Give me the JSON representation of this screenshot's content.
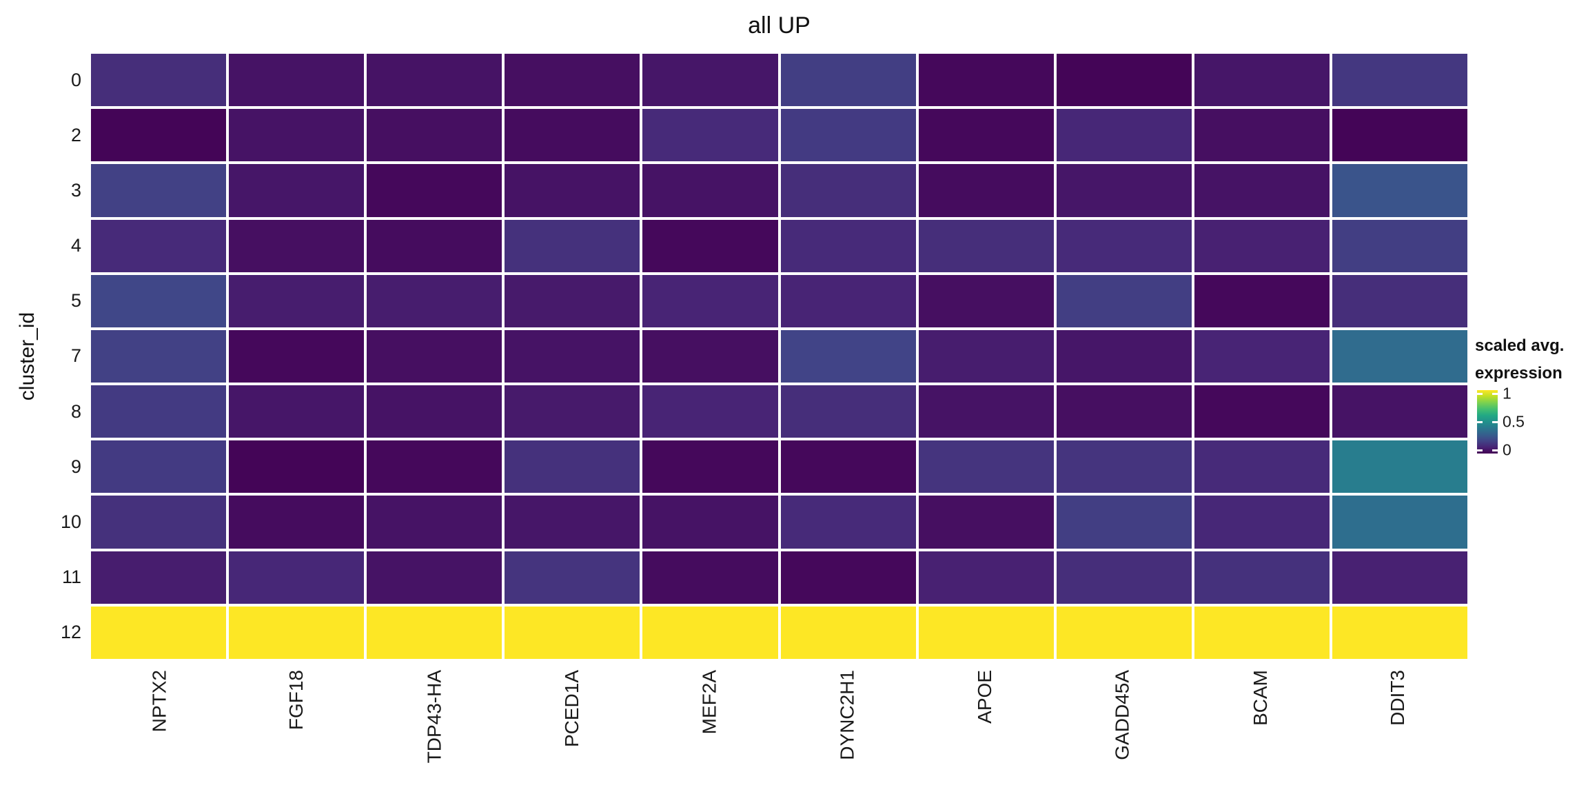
{
  "figure": {
    "title": "all UP",
    "y_axis_title": "cluster_id",
    "background_color": "#ffffff",
    "cell_border_color": "#ffffff",
    "legend": {
      "title_line1": "scaled avg.",
      "title_line2": "expression",
      "tick_labels": [
        "1",
        "0.5",
        "0"
      ],
      "tick_values": [
        1,
        0.5,
        0
      ],
      "position": "right"
    }
  },
  "chart_data": {
    "type": "heatmap",
    "title": "all UP",
    "xlabel": "",
    "ylabel": "cluster_id",
    "legend_title": "scaled avg. expression",
    "legend_ticks": [
      0,
      0.5,
      1
    ],
    "x_categories": [
      "NPTX2",
      "FGF18",
      "TDP43-HA",
      "PCED1A",
      "MEF2A",
      "DYNC2H1",
      "APOE",
      "GADD45A",
      "BCAM",
      "DDIT3"
    ],
    "y_categories": [
      "0",
      "2",
      "3",
      "4",
      "5",
      "7",
      "8",
      "9",
      "10",
      "11",
      "12"
    ],
    "values": [
      [
        0.13,
        0.05,
        0.05,
        0.04,
        0.06,
        0.18,
        0.02,
        0.01,
        0.06,
        0.16
      ],
      [
        0.01,
        0.05,
        0.04,
        0.03,
        0.12,
        0.17,
        0.02,
        0.11,
        0.04,
        0.01
      ],
      [
        0.19,
        0.06,
        0.02,
        0.05,
        0.05,
        0.13,
        0.03,
        0.06,
        0.05,
        0.26
      ],
      [
        0.12,
        0.04,
        0.03,
        0.14,
        0.02,
        0.12,
        0.13,
        0.12,
        0.09,
        0.18
      ],
      [
        0.21,
        0.08,
        0.08,
        0.07,
        0.1,
        0.1,
        0.04,
        0.18,
        0.02,
        0.13
      ],
      [
        0.19,
        0.02,
        0.04,
        0.05,
        0.04,
        0.2,
        0.08,
        0.06,
        0.1,
        0.35
      ],
      [
        0.17,
        0.06,
        0.05,
        0.07,
        0.1,
        0.13,
        0.05,
        0.04,
        0.02,
        0.05
      ],
      [
        0.17,
        0.01,
        0.02,
        0.14,
        0.02,
        0.02,
        0.15,
        0.15,
        0.12,
        0.42
      ],
      [
        0.14,
        0.03,
        0.05,
        0.06,
        0.05,
        0.12,
        0.04,
        0.18,
        0.11,
        0.36
      ],
      [
        0.08,
        0.11,
        0.05,
        0.15,
        0.03,
        0.02,
        0.09,
        0.13,
        0.14,
        0.09
      ],
      [
        1.0,
        1.0,
        1.0,
        1.0,
        1.0,
        1.0,
        1.0,
        1.0,
        1.0,
        1.0
      ]
    ],
    "value_range": [
      0,
      1
    ],
    "grid": false,
    "colormap": {
      "name": "viridis",
      "anchors": [
        [
          0.0,
          "#440154"
        ],
        [
          0.1,
          "#482475"
        ],
        [
          0.2,
          "#414487"
        ],
        [
          0.3,
          "#355f8d"
        ],
        [
          0.4,
          "#2a788e"
        ],
        [
          0.5,
          "#21918c"
        ],
        [
          0.6,
          "#22a884"
        ],
        [
          0.7,
          "#44bf70"
        ],
        [
          0.8,
          "#7ad151"
        ],
        [
          0.9,
          "#bddf26"
        ],
        [
          1.0,
          "#fde725"
        ]
      ]
    }
  }
}
